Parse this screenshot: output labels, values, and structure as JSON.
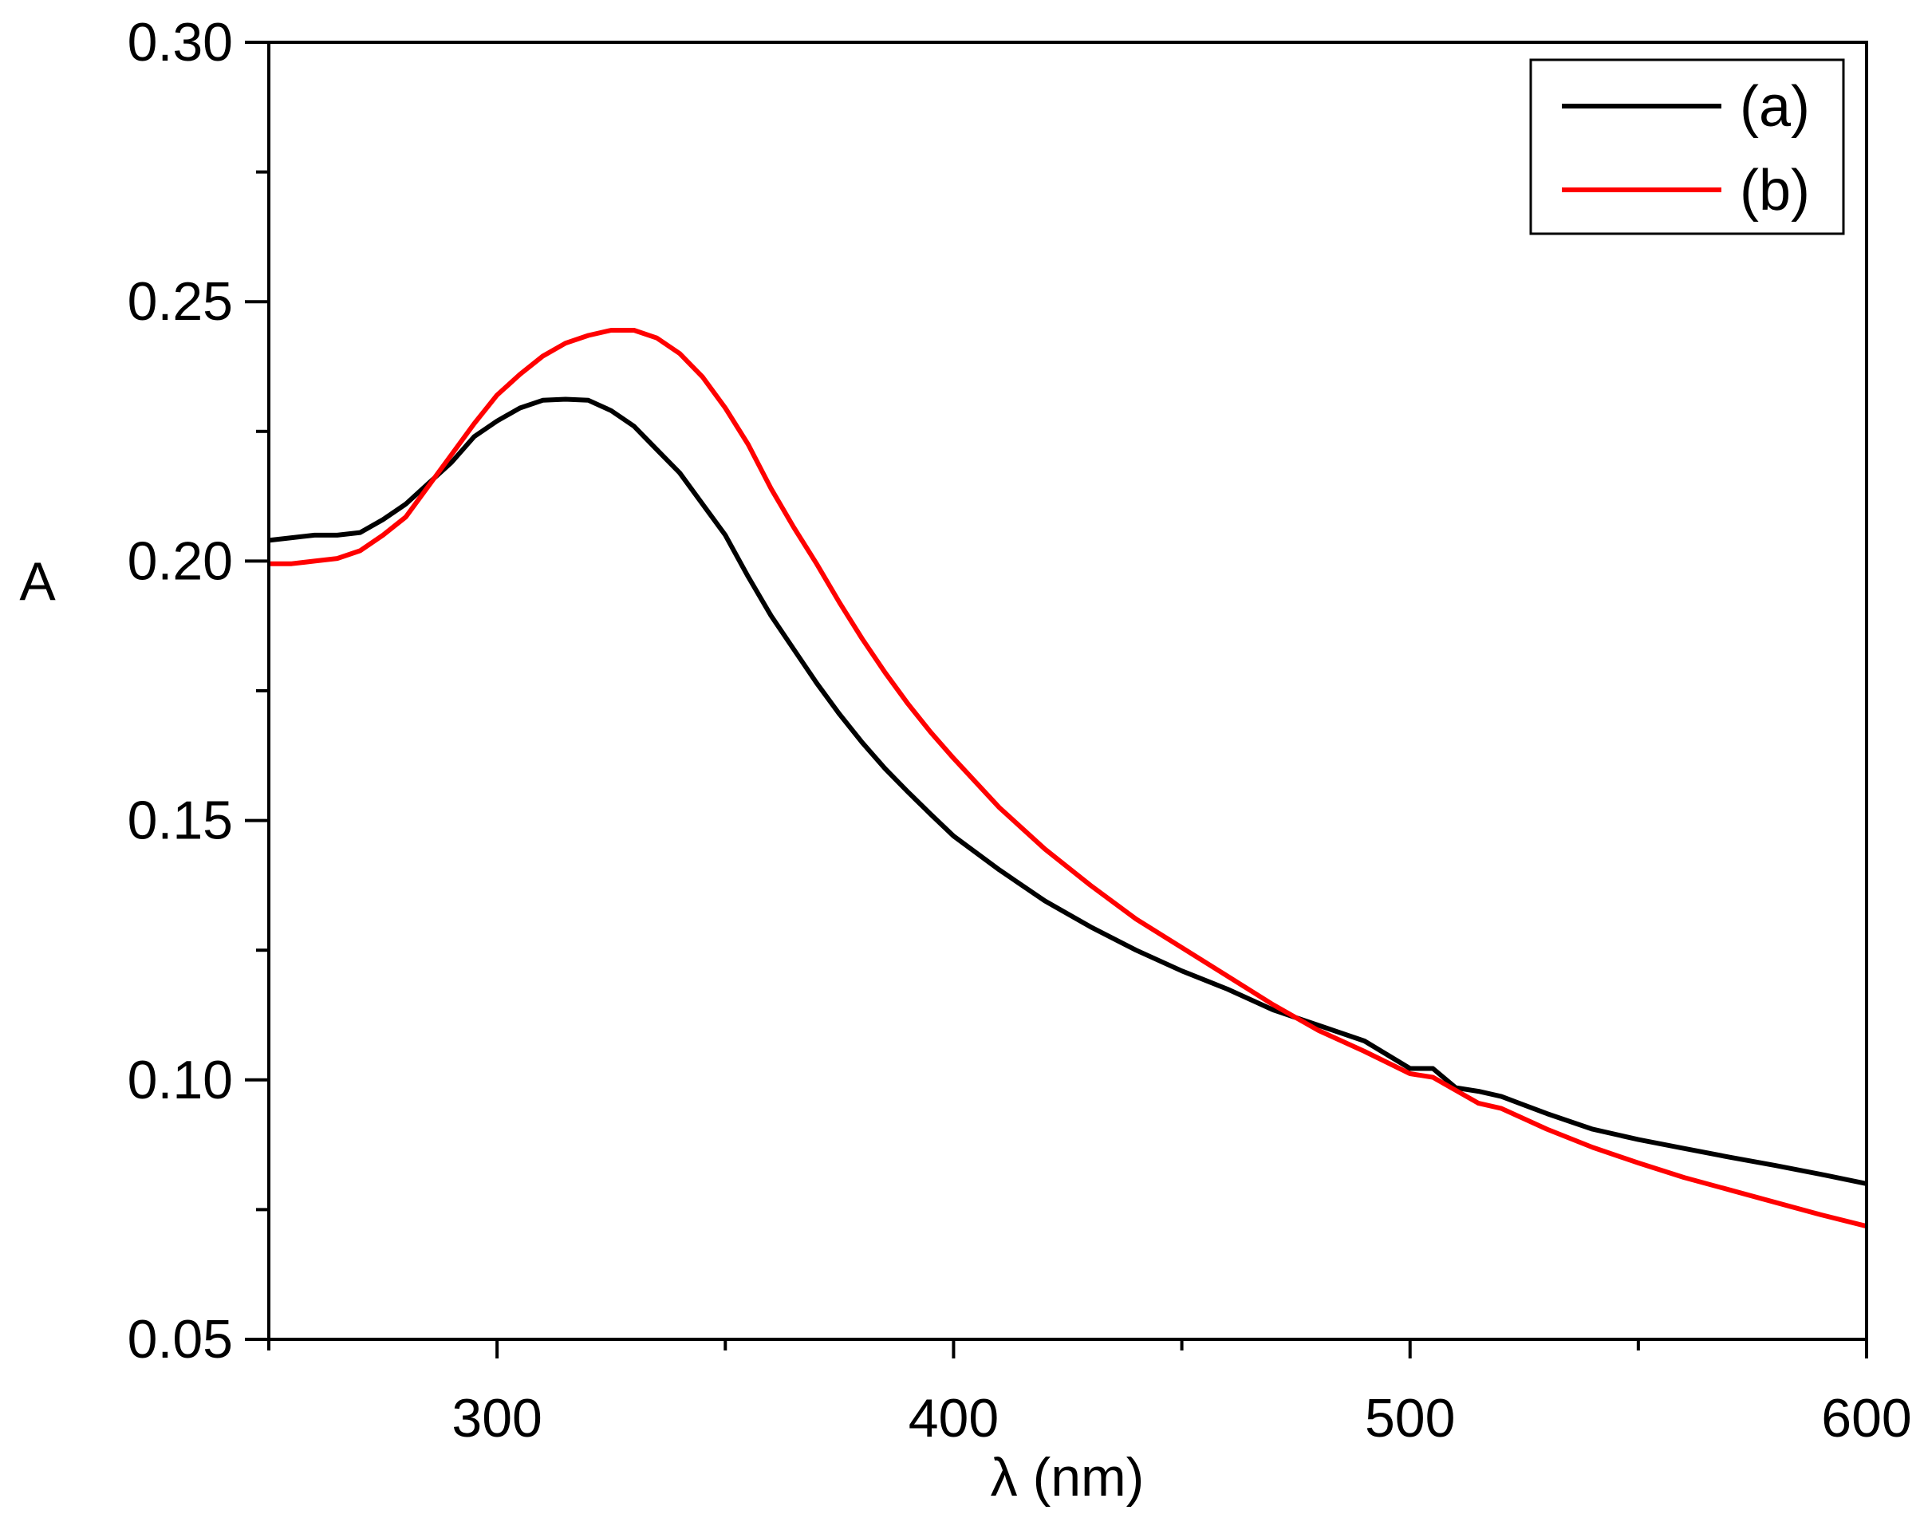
{
  "chart_data": {
    "type": "line",
    "title": "",
    "xlabel": "λ (nm)",
    "ylabel": "A",
    "xlim": [
      250,
      600
    ],
    "ylim": [
      0.05,
      0.3
    ],
    "x_major_ticks": [
      300,
      400,
      500,
      600
    ],
    "x_minor_ticks": [
      250,
      350,
      450,
      550
    ],
    "y_major_ticks": [
      0.05,
      0.1,
      0.15,
      0.2,
      0.25,
      0.3
    ],
    "y_minor_ticks": [
      0.075,
      0.125,
      0.175,
      0.225,
      0.275
    ],
    "x_tick_labels": [
      "300",
      "400",
      "500",
      "600"
    ],
    "y_tick_labels": [
      "0.05",
      "0.10",
      "0.15",
      "0.20",
      "0.25",
      "0.30"
    ],
    "grid": false,
    "legend_position": "top-right",
    "series": [
      {
        "name": "(a)",
        "color": "#000000",
        "x": [
          250,
          255,
          260,
          265,
          270,
          275,
          280,
          285,
          290,
          295,
          300,
          305,
          310,
          315,
          320,
          325,
          330,
          335,
          340,
          345,
          350,
          355,
          360,
          365,
          370,
          375,
          380,
          385,
          390,
          395,
          400,
          410,
          420,
          430,
          440,
          450,
          460,
          470,
          480,
          490,
          500,
          505,
          510,
          515,
          520,
          530,
          540,
          550,
          560,
          570,
          580,
          590,
          600
        ],
        "y": [
          0.204,
          0.2045,
          0.205,
          0.205,
          0.2055,
          0.208,
          0.211,
          0.215,
          0.219,
          0.224,
          0.227,
          0.2295,
          0.231,
          0.2312,
          0.231,
          0.229,
          0.226,
          0.2215,
          0.217,
          0.211,
          0.205,
          0.197,
          0.1895,
          0.183,
          0.1765,
          0.1705,
          0.165,
          0.16,
          0.1555,
          0.1512,
          0.147,
          0.1405,
          0.1345,
          0.1295,
          0.125,
          0.121,
          0.1175,
          0.1135,
          0.1105,
          0.1075,
          0.1022,
          0.1022,
          0.0985,
          0.0978,
          0.0968,
          0.0935,
          0.0905,
          0.0885,
          0.0868,
          0.0851,
          0.0835,
          0.0818,
          0.08
        ]
      },
      {
        "name": "(b)",
        "color": "#ff0000",
        "x": [
          250,
          255,
          260,
          265,
          270,
          275,
          280,
          285,
          290,
          295,
          300,
          305,
          310,
          315,
          320,
          325,
          330,
          335,
          340,
          345,
          350,
          355,
          360,
          365,
          370,
          375,
          380,
          385,
          390,
          395,
          400,
          410,
          420,
          430,
          440,
          450,
          460,
          470,
          480,
          490,
          500,
          505,
          510,
          515,
          520,
          530,
          540,
          550,
          560,
          570,
          580,
          590,
          600
        ],
        "y": [
          0.1995,
          0.1995,
          0.2,
          0.2005,
          0.202,
          0.205,
          0.2085,
          0.2145,
          0.2205,
          0.2265,
          0.232,
          0.236,
          0.2395,
          0.242,
          0.2435,
          0.2445,
          0.2445,
          0.243,
          0.24,
          0.2355,
          0.2295,
          0.2225,
          0.214,
          0.2065,
          0.1995,
          0.192,
          0.185,
          0.1785,
          0.1725,
          0.167,
          0.162,
          0.1525,
          0.1445,
          0.1375,
          0.131,
          0.1255,
          0.12,
          0.1145,
          0.1095,
          0.1055,
          0.1012,
          0.1005,
          0.098,
          0.0955,
          0.0945,
          0.0905,
          0.087,
          0.084,
          0.0812,
          0.0788,
          0.0764,
          0.074,
          0.0718
        ]
      }
    ]
  }
}
